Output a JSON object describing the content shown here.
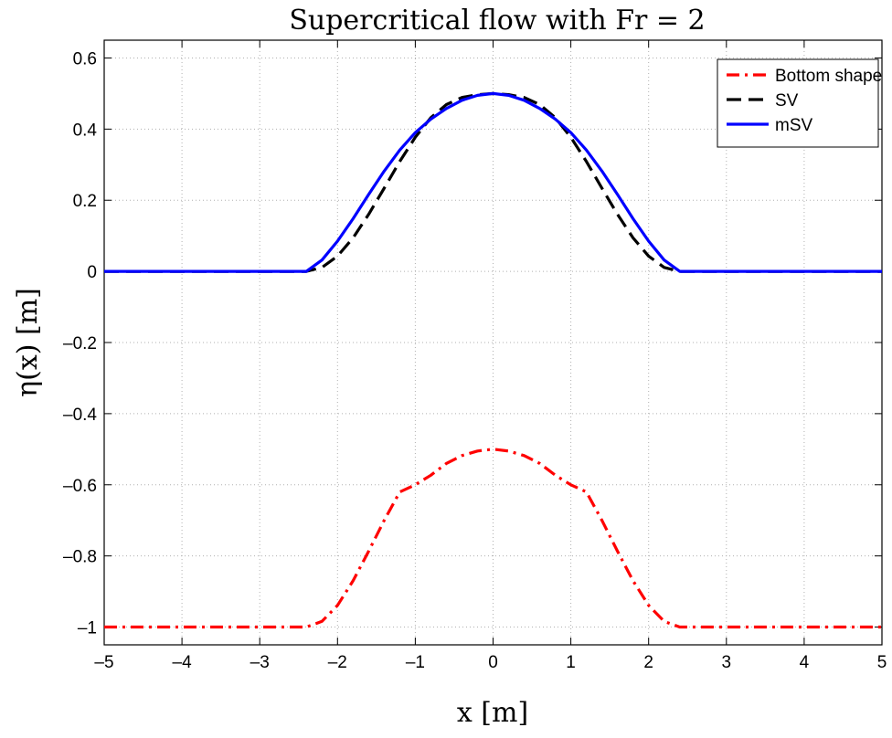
{
  "chart_data": {
    "type": "line",
    "title": "Supercritical flow with Fr = 2",
    "xlabel": "x [m]",
    "ylabel": "η(x) [m]",
    "xlim": [
      -5,
      5
    ],
    "ylim": [
      -1.05,
      0.65
    ],
    "xticks": [
      -5,
      -4,
      -3,
      -2,
      -1,
      0,
      1,
      2,
      3,
      4,
      5
    ],
    "xtick_labels": [
      "–5",
      "–4",
      "–3",
      "–2",
      "–1",
      "0",
      "1",
      "2",
      "3",
      "4",
      "5"
    ],
    "yticks": [
      -1,
      -0.8,
      -0.6,
      -0.4,
      -0.2,
      0,
      0.2,
      0.4,
      0.6
    ],
    "ytick_labels": [
      "–1",
      "–0.8",
      "–0.6",
      "–0.4",
      "–0.2",
      "0",
      "0.2",
      "0.4",
      "0.6"
    ],
    "grid": true,
    "legend_position": "top-right",
    "series": [
      {
        "name": "Bottom shape",
        "color": "#ff0000",
        "style": "dashdot",
        "x": [
          -5,
          -4,
          -3,
          -2.5,
          -2.4,
          -2.2,
          -2,
          -1.8,
          -1.6,
          -1.4,
          -1.2,
          -1,
          -0.8,
          -0.6,
          -0.4,
          -0.2,
          0,
          0.2,
          0.4,
          0.6,
          0.8,
          1,
          1.2,
          1.4,
          1.6,
          1.8,
          2,
          2.2,
          2.4,
          2.5,
          3,
          4,
          5
        ],
        "y": [
          -1,
          -1,
          -1,
          -1,
          -1,
          -0.984,
          -0.939,
          -0.87,
          -0.787,
          -0.7,
          -0.62,
          -0.6,
          -0.573,
          -0.54,
          -0.518,
          -0.505,
          -0.5,
          -0.505,
          -0.518,
          -0.54,
          -0.573,
          -0.6,
          -0.62,
          -0.7,
          -0.787,
          -0.87,
          -0.939,
          -0.984,
          -1,
          -1,
          -1,
          -1,
          -1
        ]
      },
      {
        "name": "SV",
        "color": "#000000",
        "style": "dashed",
        "x": [
          -5,
          -4,
          -3,
          -2.4,
          -2.2,
          -2,
          -1.8,
          -1.6,
          -1.4,
          -1.2,
          -1,
          -0.8,
          -0.6,
          -0.4,
          -0.2,
          0,
          0.2,
          0.4,
          0.6,
          0.8,
          1,
          1.2,
          1.4,
          1.6,
          1.8,
          2,
          2.2,
          2.4,
          3,
          4,
          5
        ],
        "y": [
          0,
          0,
          0,
          0,
          0.011,
          0.043,
          0.094,
          0.16,
          0.234,
          0.309,
          0.377,
          0.432,
          0.469,
          0.489,
          0.497,
          0.5,
          0.497,
          0.489,
          0.469,
          0.432,
          0.377,
          0.309,
          0.234,
          0.16,
          0.094,
          0.043,
          0.011,
          0,
          0,
          0,
          0
        ]
      },
      {
        "name": "mSV",
        "color": "#0000ff",
        "style": "solid",
        "x": [
          -5,
          -4,
          -3,
          -2.4,
          -2.2,
          -2,
          -1.8,
          -1.6,
          -1.4,
          -1.2,
          -1,
          -0.8,
          -0.6,
          -0.4,
          -0.2,
          0,
          0.2,
          0.4,
          0.6,
          0.8,
          1,
          1.2,
          1.4,
          1.6,
          1.8,
          2,
          2.2,
          2.4,
          3,
          4,
          5
        ],
        "y": [
          0,
          0,
          0,
          0,
          0.032,
          0.085,
          0.148,
          0.216,
          0.282,
          0.341,
          0.39,
          0.428,
          0.458,
          0.481,
          0.495,
          0.5,
          0.495,
          0.481,
          0.458,
          0.428,
          0.39,
          0.341,
          0.282,
          0.216,
          0.148,
          0.085,
          0.032,
          0,
          0,
          0,
          0
        ]
      }
    ]
  }
}
